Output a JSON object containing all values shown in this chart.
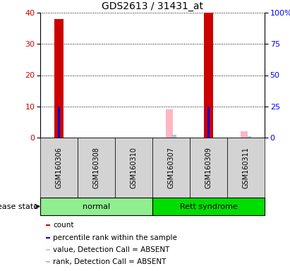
{
  "title": "GDS2613 / 31431_at",
  "samples": [
    "GSM160306",
    "GSM160308",
    "GSM160310",
    "GSM160307",
    "GSM160309",
    "GSM160311"
  ],
  "groups": [
    "normal",
    "normal",
    "normal",
    "Rett syndrome",
    "Rett syndrome",
    "Rett syndrome"
  ],
  "group_colors": {
    "normal": "#90EE90",
    "Rett syndrome": "#00DD00"
  },
  "count_values": [
    38,
    0,
    0,
    0,
    40,
    0
  ],
  "percentile_values": [
    25,
    0,
    0,
    0,
    25,
    0
  ],
  "absent_value_values": [
    0,
    0,
    0,
    9.0,
    0,
    2.0
  ],
  "absent_rank_values": [
    0,
    0,
    0,
    2.5,
    0,
    1.0
  ],
  "count_color": "#CC0000",
  "percentile_color": "#0000CC",
  "absent_value_color": "#FFB6C1",
  "absent_rank_color": "#B0C4DE",
  "ylim_left": [
    0,
    40
  ],
  "ylim_right": [
    0,
    100
  ],
  "yticks_left": [
    0,
    10,
    20,
    30,
    40
  ],
  "ytick_labels_right": [
    "0",
    "25",
    "50",
    "75",
    "100%"
  ],
  "yticks_right": [
    0,
    25,
    50,
    75,
    100
  ],
  "bar_width": 0.35,
  "background_color": "#ffffff",
  "plot_bg_color": "#ffffff",
  "label_area_color": "#D3D3D3",
  "legend_items": [
    {
      "label": "count",
      "color": "#CC0000"
    },
    {
      "label": "percentile rank within the sample",
      "color": "#0000CC"
    },
    {
      "label": "value, Detection Call = ABSENT",
      "color": "#FFB6C1"
    },
    {
      "label": "rank, Detection Call = ABSENT",
      "color": "#B0C4DE"
    }
  ]
}
